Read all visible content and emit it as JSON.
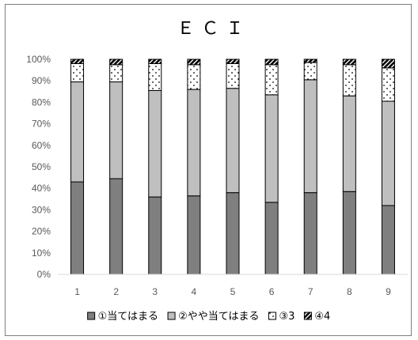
{
  "chart_data": {
    "type": "bar",
    "stacked": true,
    "title": "ＥＣＩ",
    "categories": [
      "1",
      "2",
      "3",
      "4",
      "5",
      "6",
      "7",
      "8",
      "9"
    ],
    "ylim": [
      0,
      100
    ],
    "y_ticks": [
      "0%",
      "10%",
      "20%",
      "30%",
      "40%",
      "50%",
      "60%",
      "70%",
      "80%",
      "90%",
      "100%"
    ],
    "grid": false,
    "legend_position": "bottom",
    "series": [
      {
        "name": "①当てはまる",
        "fill": "#7f7f7f",
        "pattern": "solid",
        "values": [
          43,
          44.5,
          36,
          36.5,
          38,
          33.5,
          38,
          38.5,
          32
        ]
      },
      {
        "name": "②やや当てはまる",
        "fill": "#bfbfbf",
        "pattern": "solid",
        "values": [
          46.5,
          45,
          49.5,
          49.5,
          48.5,
          50,
          52.5,
          44.5,
          48.5
        ]
      },
      {
        "name": "③3",
        "fill": "#ffffff",
        "pattern": "dots",
        "values": [
          8.5,
          8,
          12.5,
          11.5,
          11.5,
          14,
          8,
          14.5,
          15.5
        ]
      },
      {
        "name": "④4",
        "fill": "#000000",
        "pattern": "hatch",
        "values": [
          2,
          2.5,
          2,
          2.5,
          2,
          2.5,
          1.5,
          2.5,
          4
        ]
      }
    ]
  }
}
